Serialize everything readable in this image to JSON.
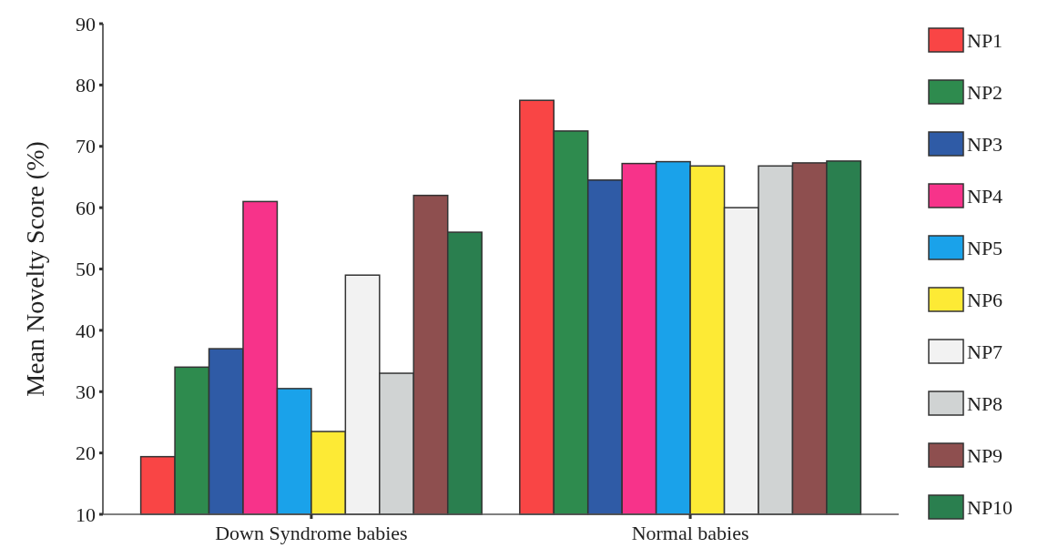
{
  "chart_data": {
    "type": "bar",
    "ylabel": "Mean Novelty Score (%)",
    "categories": [
      "Down Syndrome babies",
      "Normal babies"
    ],
    "series": [
      {
        "name": "NP1",
        "color": "#f94545",
        "values": [
          19.4,
          77.5
        ]
      },
      {
        "name": "NP2",
        "color": "#2e8b4e",
        "values": [
          34,
          72.5
        ]
      },
      {
        "name": "NP3",
        "color": "#2f5ba6",
        "values": [
          37,
          64.5
        ]
      },
      {
        "name": "NP4",
        "color": "#f7338a",
        "values": [
          61,
          67.2
        ]
      },
      {
        "name": "NP5",
        "color": "#1aa2ea",
        "values": [
          30.5,
          67.5
        ]
      },
      {
        "name": "NP6",
        "color": "#fdea35",
        "values": [
          23.5,
          66.8
        ]
      },
      {
        "name": "NP7",
        "color": "#f2f2f2",
        "values": [
          49,
          60
        ]
      },
      {
        "name": "NP8",
        "color": "#d0d3d3",
        "values": [
          33,
          66.8
        ]
      },
      {
        "name": "NP9",
        "color": "#8e4f4f",
        "values": [
          62,
          67.3
        ]
      },
      {
        "name": "NP10",
        "color": "#2a7f4f",
        "values": [
          56,
          67.6
        ]
      }
    ],
    "ylim": [
      10,
      90
    ],
    "yticks": [
      10,
      20,
      30,
      40,
      50,
      60,
      70,
      80,
      90
    ],
    "grid": false,
    "legend": "right"
  }
}
